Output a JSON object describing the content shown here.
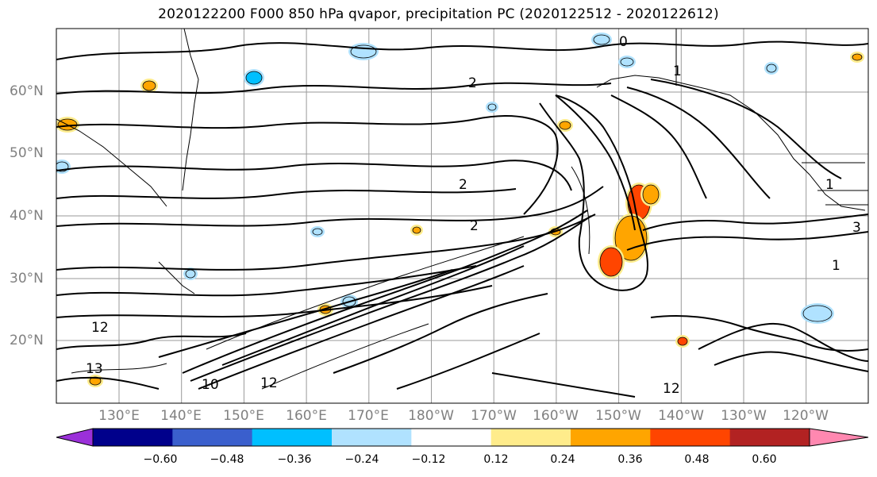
{
  "title": "2020122200 F000 850 hPa qvapor, precipitation PC (2020122512 - 2020122612)",
  "lat_labels": [
    "60°N",
    "50°N",
    "40°N",
    "30°N",
    "20°N"
  ],
  "lon_labels": [
    "130°E",
    "140°E",
    "150°E",
    "160°E",
    "170°E",
    "180°W",
    "170°W",
    "160°W",
    "150°W",
    "140°W",
    "130°W",
    "120°W"
  ],
  "contour_labels": [
    "0",
    "1",
    "2",
    "2",
    "2",
    "3",
    "1",
    "12",
    "12",
    "10",
    "12",
    "13",
    "1"
  ],
  "colorbar": {
    "tick_labels": [
      "−0.60",
      "−0.48",
      "−0.36",
      "−0.24",
      "−0.12",
      "0.12",
      "0.24",
      "0.36",
      "0.48",
      "0.60"
    ],
    "colors": [
      "#9b30d9",
      "#00008b",
      "#3a5fcd",
      "#00bfff",
      "#b0e2ff",
      "#ffffff",
      "#ffec8b",
      "#ffa500",
      "#ff4500",
      "#b22222",
      "#ff88b0"
    ]
  }
}
